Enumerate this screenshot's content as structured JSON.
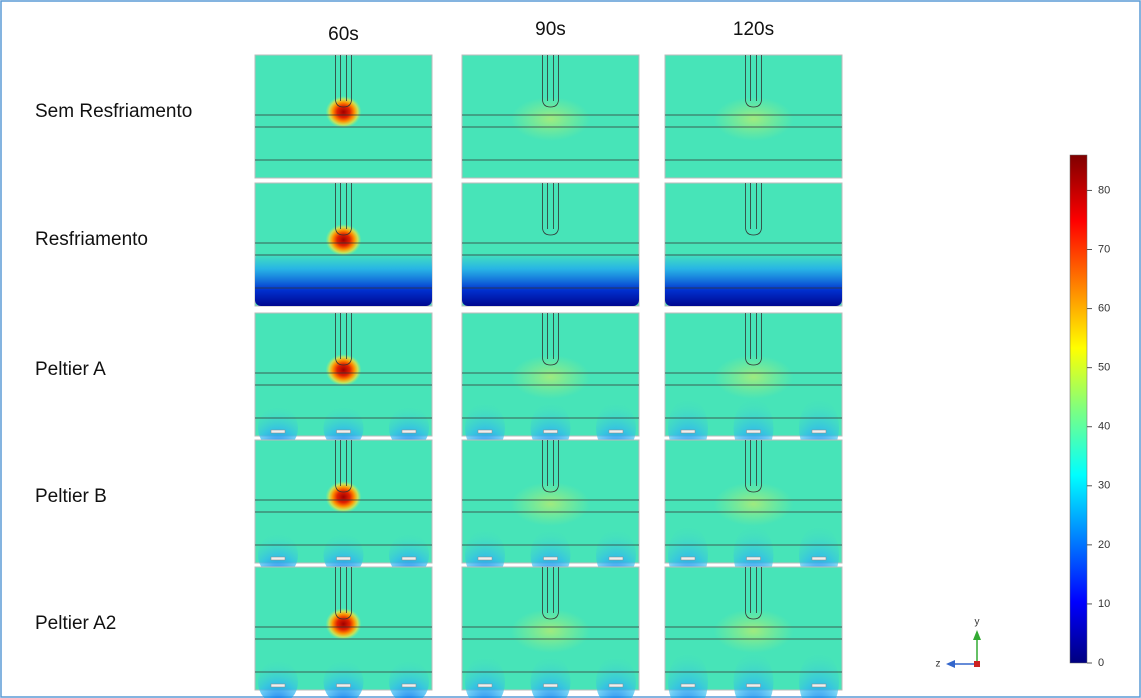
{
  "figure": {
    "columns": [
      "60s",
      "90s",
      "120s"
    ],
    "rows": [
      "Sem Resfriamento",
      "Resfriamento",
      "Peltier A",
      "Peltier B",
      "Peltier A2"
    ],
    "colorbar": {
      "lim": [
        0,
        86
      ],
      "ticks": [
        0,
        10,
        20,
        30,
        40,
        50,
        60,
        70,
        80
      ]
    },
    "axes": {
      "vertical": "y",
      "horizontal": "z"
    }
  }
}
